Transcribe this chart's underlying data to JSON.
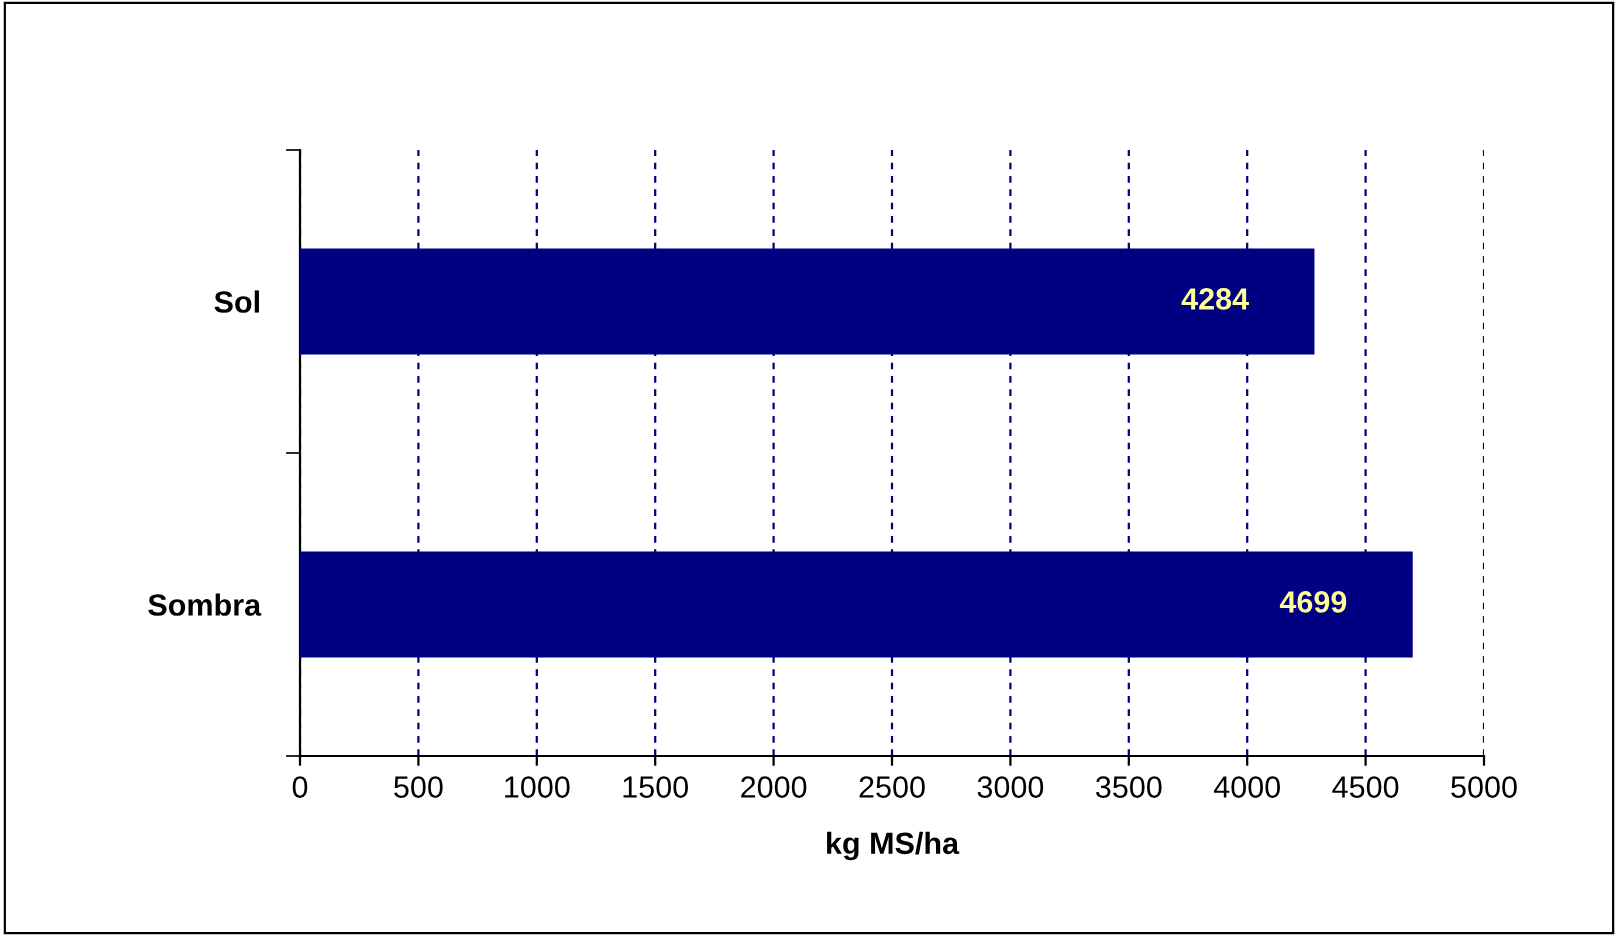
{
  "chart_data": {
    "type": "bar",
    "orientation": "horizontal",
    "categories": [
      "Sol",
      "Sombra"
    ],
    "values": [
      4284,
      4699
    ],
    "color": "#000080",
    "data_labels": true,
    "xlabel": "kg MS/ha",
    "xlim": [
      0,
      5000
    ],
    "xticks": [
      0,
      500,
      1000,
      1500,
      2000,
      2500,
      3000,
      3500,
      4000,
      4500,
      5000
    ],
    "grid": "x"
  }
}
